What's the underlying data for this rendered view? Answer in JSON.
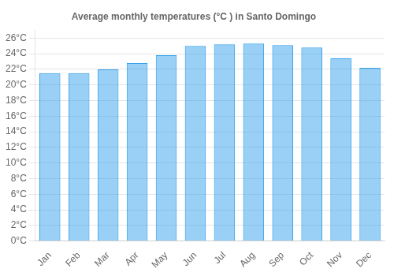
{
  "chart_data": {
    "type": "bar",
    "title": "Average monthly temperatures (°C ) in Santo Domingo",
    "categories": [
      "Jan",
      "Feb",
      "Mar",
      "Apr",
      "May",
      "Jun",
      "Jul",
      "Aug",
      "Sep",
      "Oct",
      "Nov",
      "Dec"
    ],
    "values": [
      21.5,
      21.5,
      22.0,
      22.8,
      23.8,
      25.0,
      25.2,
      25.3,
      25.1,
      24.8,
      23.4,
      22.2
    ],
    "ylim": [
      0,
      27
    ],
    "yticks": [
      {
        "value": 0,
        "label": "0°C"
      },
      {
        "value": 2,
        "label": "2°C"
      },
      {
        "value": 4,
        "label": "4°C"
      },
      {
        "value": 6,
        "label": "6°C"
      },
      {
        "value": 8,
        "label": "8°C"
      },
      {
        "value": 10,
        "label": "10°C"
      },
      {
        "value": 12,
        "label": "12°C"
      },
      {
        "value": 14,
        "label": "14°C"
      },
      {
        "value": 16,
        "label": "16°C"
      },
      {
        "value": 18,
        "label": "18°C"
      },
      {
        "value": 20,
        "label": "20°C"
      },
      {
        "value": 22,
        "label": "22°C"
      },
      {
        "value": 24,
        "label": "24°C"
      },
      {
        "value": 26,
        "label": "26°C"
      }
    ],
    "grid": true
  }
}
